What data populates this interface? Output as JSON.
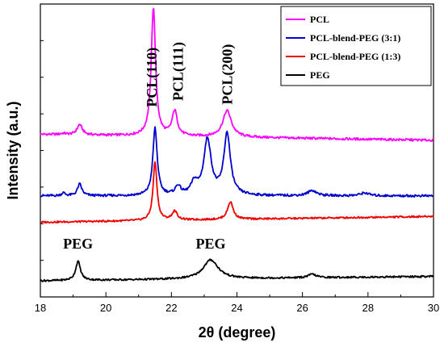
{
  "chart_data": {
    "type": "line",
    "xlabel": "2θ (degree)",
    "ylabel": "Intensity (a.u.)",
    "xlim": [
      18,
      30
    ],
    "xticks": [
      "18",
      "20",
      "22",
      "24",
      "26",
      "28",
      "30"
    ],
    "yticks_shown": false,
    "legend_position": "top-right",
    "series": [
      {
        "name": "PCL",
        "color": "#ff00ff",
        "baseline": 0.555,
        "drift": -0.02,
        "noise": 0.004,
        "peaks": [
          {
            "x": 18.7,
            "h": 0.004,
            "w": 0.12
          },
          {
            "x": 19.2,
            "h": 0.035,
            "w": 0.12
          },
          {
            "x": 21.45,
            "h": 0.44,
            "w": 0.1
          },
          {
            "x": 22.1,
            "h": 0.085,
            "w": 0.12
          },
          {
            "x": 23.7,
            "h": 0.09,
            "w": 0.2
          }
        ]
      },
      {
        "name": "PCL-blend-PEG (3:1)",
        "color": "#0000cc",
        "baseline": 0.345,
        "drift": 0.0,
        "noise": 0.004,
        "peaks": [
          {
            "x": 18.7,
            "h": 0.01,
            "w": 0.08
          },
          {
            "x": 19.2,
            "h": 0.04,
            "w": 0.1
          },
          {
            "x": 21.5,
            "h": 0.23,
            "w": 0.1
          },
          {
            "x": 22.2,
            "h": 0.03,
            "w": 0.12
          },
          {
            "x": 22.7,
            "h": 0.04,
            "w": 0.15
          },
          {
            "x": 23.1,
            "h": 0.19,
            "w": 0.17
          },
          {
            "x": 23.7,
            "h": 0.21,
            "w": 0.15
          },
          {
            "x": 26.3,
            "h": 0.018,
            "w": 0.2
          },
          {
            "x": 27.9,
            "h": 0.01,
            "w": 0.2
          }
        ]
      },
      {
        "name": "PCL-blend-PEG (1:3)",
        "color": "#ee0000",
        "baseline": 0.255,
        "drift": 0.02,
        "noise": 0.003,
        "peaks": [
          {
            "x": 21.5,
            "h": 0.2,
            "w": 0.09
          },
          {
            "x": 22.1,
            "h": 0.03,
            "w": 0.12
          },
          {
            "x": 23.8,
            "h": 0.06,
            "w": 0.13
          }
        ]
      },
      {
        "name": "PEG",
        "color": "#000000",
        "baseline": 0.055,
        "drift": 0.015,
        "noise": 0.003,
        "peaks": [
          {
            "x": 19.15,
            "h": 0.065,
            "w": 0.11
          },
          {
            "x": 23.2,
            "h": 0.065,
            "w": 0.35
          },
          {
            "x": 26.3,
            "h": 0.012,
            "w": 0.18
          }
        ]
      }
    ],
    "annotations": [
      {
        "text": "PCL(110)",
        "x": 21.55,
        "y": 0.75,
        "rotate": -90
      },
      {
        "text": "PCL(111)",
        "x": 22.35,
        "y": 0.77,
        "rotate": -90
      },
      {
        "text": "PCL(200)",
        "x": 23.85,
        "y": 0.76,
        "rotate": -90
      },
      {
        "text": "PEG",
        "x": 19.15,
        "y": 0.165,
        "rotate": 0
      },
      {
        "text": "PEG",
        "x": 23.2,
        "y": 0.165,
        "rotate": 0
      }
    ]
  }
}
